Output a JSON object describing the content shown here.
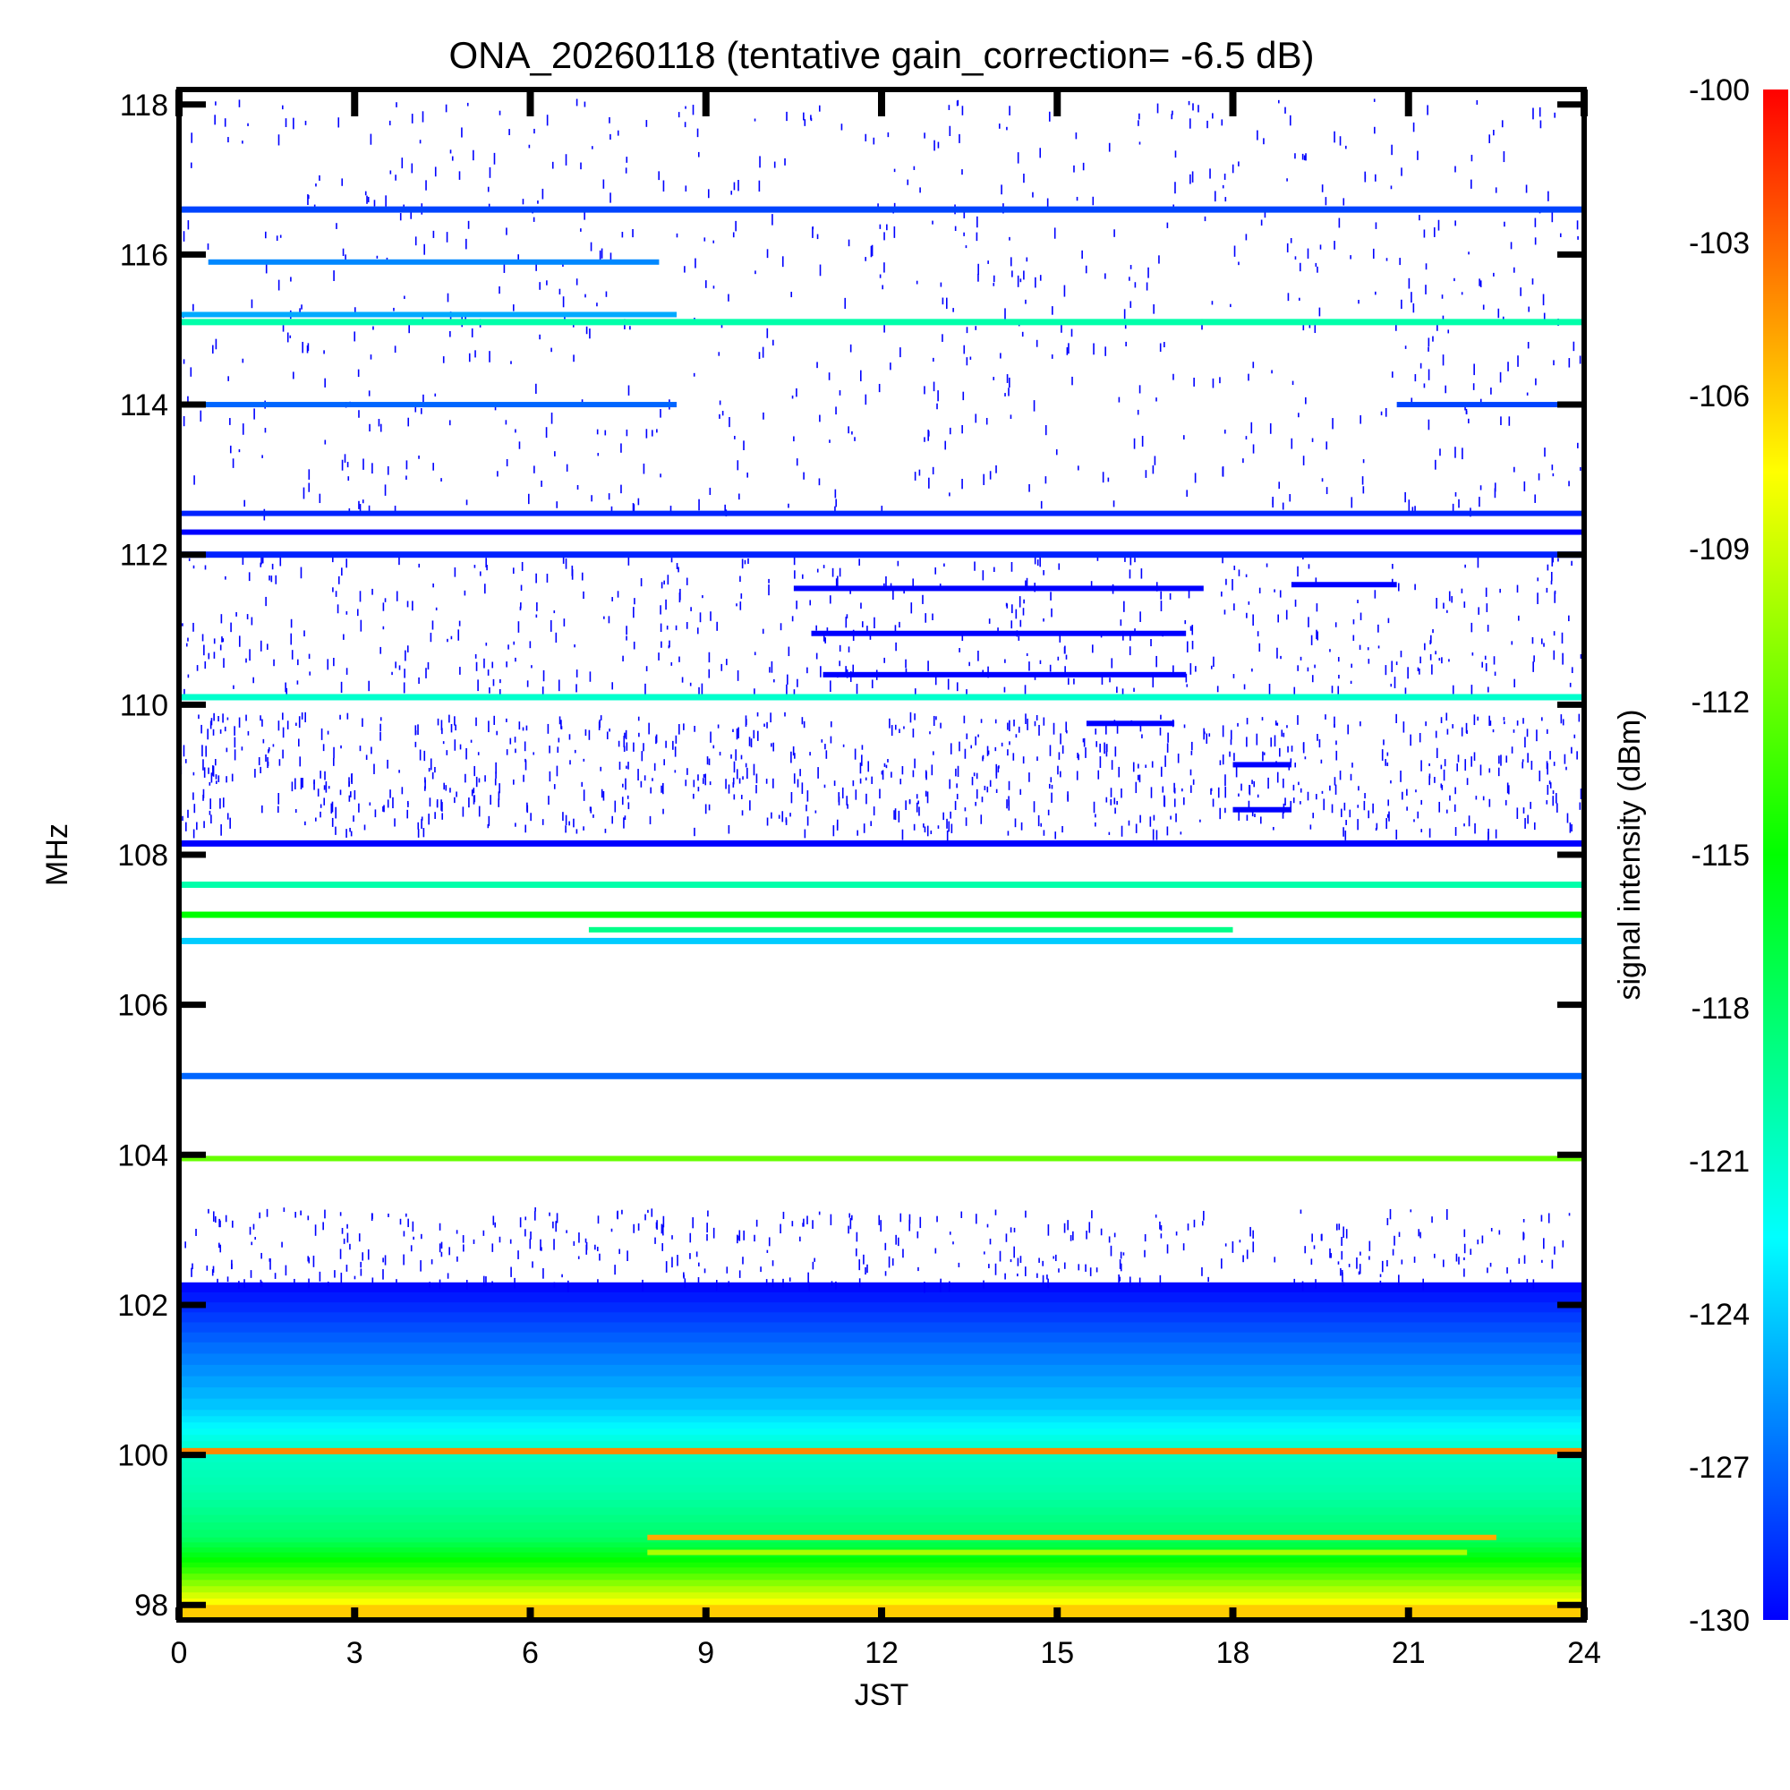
{
  "chart_data": {
    "type": "heatmap",
    "title": "ONA_20260118 (tentative gain_correction= -6.5 dB)",
    "xlabel": "JST",
    "ylabel": "MHz",
    "colorbar_label": "signal intensity (dBm)",
    "xlim": [
      0,
      24
    ],
    "ylim": [
      97.8,
      118.2
    ],
    "clim": [
      -130,
      -100
    ],
    "x_ticks": [
      "0",
      "3",
      "6",
      "9",
      "12",
      "15",
      "18",
      "21",
      "24"
    ],
    "x_tick_values": [
      0,
      3,
      6,
      9,
      12,
      15,
      18,
      21,
      24
    ],
    "y_ticks": [
      "98",
      "100",
      "102",
      "104",
      "106",
      "108",
      "110",
      "112",
      "114",
      "116",
      "118"
    ],
    "y_tick_values": [
      98,
      100,
      102,
      104,
      106,
      108,
      110,
      112,
      114,
      116,
      118
    ],
    "colorbar_ticks": [
      "-100",
      "-103",
      "-106",
      "-109",
      "-112",
      "-115",
      "-118",
      "-121",
      "-124",
      "-127",
      "-130"
    ],
    "colorbar_tick_values": [
      -100,
      -103,
      -106,
      -109,
      -112,
      -115,
      -118,
      -121,
      -124,
      -127,
      -130
    ],
    "colormap": [
      "#0000ff",
      "#0080ff",
      "#00ffff",
      "#00ff80",
      "#00ff00",
      "#80ff00",
      "#ffff00",
      "#ff8000",
      "#ff0000"
    ],
    "continuous_bands": [
      {
        "freq": 116.6,
        "dbm": -128
      },
      {
        "freq": 115.1,
        "dbm": -120
      },
      {
        "freq": 112.0,
        "dbm": -129
      },
      {
        "freq": 110.1,
        "dbm": -121
      },
      {
        "freq": 108.15,
        "dbm": -130
      },
      {
        "freq": 107.6,
        "dbm": -120
      },
      {
        "freq": 107.2,
        "dbm": -115
      },
      {
        "freq": 106.85,
        "dbm": -124
      },
      {
        "freq": 105.05,
        "dbm": -127
      },
      {
        "freq": 100.05,
        "dbm": -104
      }
    ],
    "intermittent_bands": [
      {
        "freq": 115.9,
        "start": 0.5,
        "end": 8.2,
        "dbm": -126
      },
      {
        "freq": 115.2,
        "start": 0,
        "end": 8.5,
        "dbm": -125
      },
      {
        "freq": 114.0,
        "start": 0,
        "end": 8.5,
        "dbm": -127
      },
      {
        "freq": 114.0,
        "start": 20.8,
        "end": 24,
        "dbm": -128
      },
      {
        "freq": 112.55,
        "start": 0,
        "end": 24,
        "dbm": -129
      },
      {
        "freq": 112.3,
        "start": 0,
        "end": 24,
        "dbm": -130
      },
      {
        "freq": 111.55,
        "start": 10.5,
        "end": 17.5,
        "dbm": -130
      },
      {
        "freq": 111.6,
        "start": 19,
        "end": 20.8,
        "dbm": -130
      },
      {
        "freq": 110.95,
        "start": 10.8,
        "end": 17.2,
        "dbm": -130
      },
      {
        "freq": 110.4,
        "start": 11,
        "end": 17.2,
        "dbm": -130
      },
      {
        "freq": 109.75,
        "start": 15.5,
        "end": 17,
        "dbm": -130
      },
      {
        "freq": 109.2,
        "start": 18,
        "end": 19,
        "dbm": -130
      },
      {
        "freq": 108.6,
        "start": 18,
        "end": 19,
        "dbm": -130
      },
      {
        "freq": 107.0,
        "start": 7,
        "end": 18,
        "dbm": -119
      },
      {
        "freq": 103.95,
        "start": 0,
        "end": 24,
        "dbm": -112
      },
      {
        "freq": 98.9,
        "start": 8,
        "end": 22.5,
        "dbm": -105
      },
      {
        "freq": 98.7,
        "start": 8,
        "end": 22,
        "dbm": -110
      }
    ],
    "noise_floor_gradient": [
      {
        "freq": 102.3,
        "dbm": -130
      },
      {
        "freq": 101.5,
        "dbm": -127
      },
      {
        "freq": 100.6,
        "dbm": -124
      },
      {
        "freq": 100.1,
        "dbm": -121
      },
      {
        "freq": 99.5,
        "dbm": -120
      },
      {
        "freq": 98.9,
        "dbm": -118
      },
      {
        "freq": 98.5,
        "dbm": -114
      },
      {
        "freq": 98.0,
        "dbm": -107
      }
    ]
  }
}
